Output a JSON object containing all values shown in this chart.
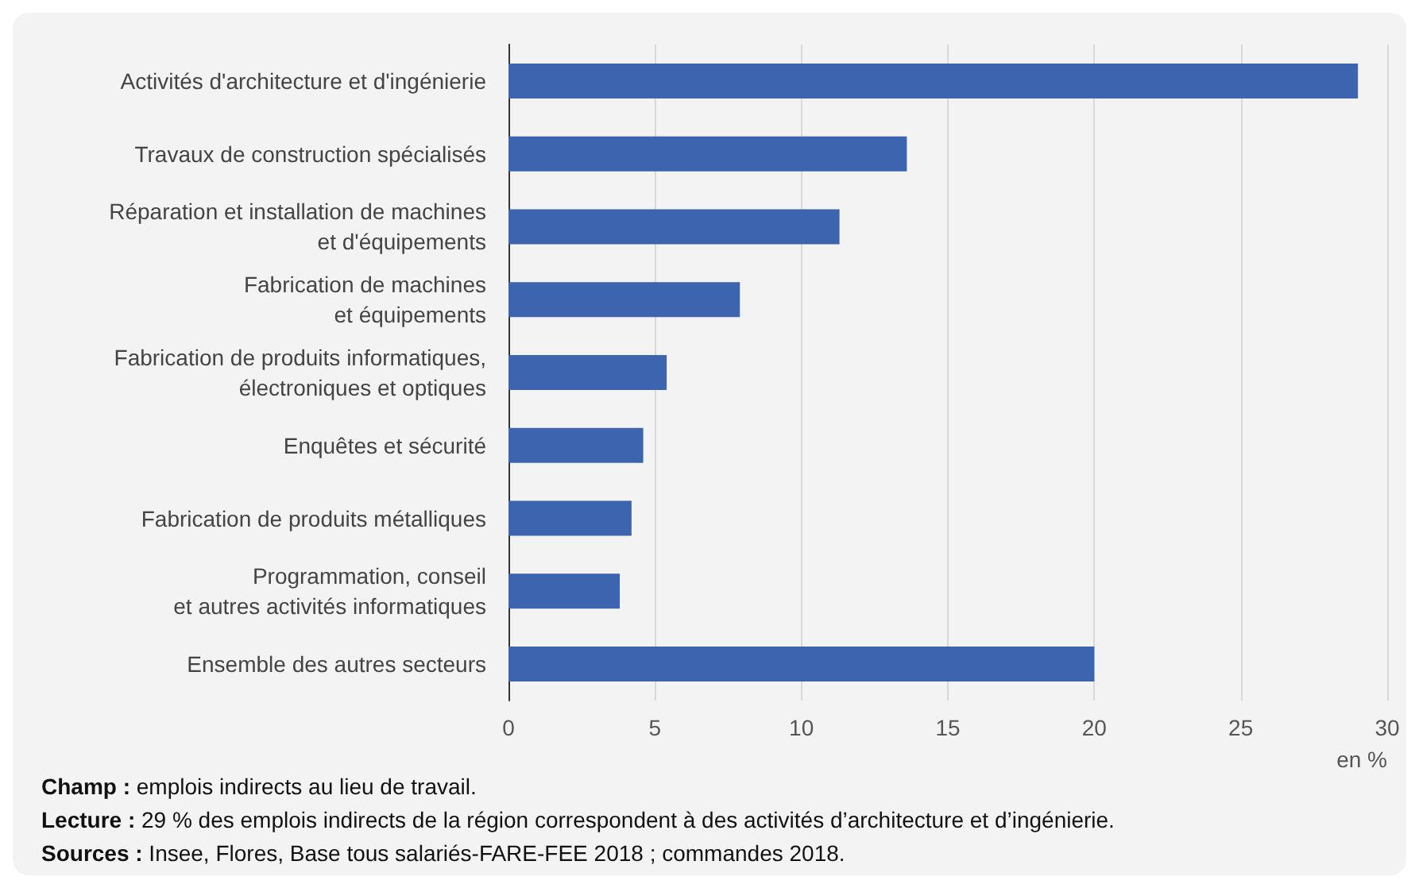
{
  "chart_data": {
    "type": "bar",
    "orientation": "horizontal",
    "xlabel": "en %",
    "categories": [
      "Activités d'architecture et d'ingénierie",
      "Travaux de construction spécialisés",
      "Réparation et installation de machines\net d'équipements",
      "Fabrication de machines\net équipements",
      "Fabrication de produits informatiques,\nélectroniques et optiques",
      "Enquêtes et sécurité",
      "Fabrication de produits métalliques",
      "Programmation, conseil\net autres activités informatiques",
      "Ensemble des autres secteurs"
    ],
    "values": [
      29.0,
      13.6,
      11.3,
      7.9,
      5.4,
      4.6,
      4.2,
      3.8,
      20.0
    ],
    "color": "#3d64ae",
    "xlim": [
      0,
      30
    ],
    "xticks": [
      0,
      5,
      10,
      15,
      20,
      25,
      30
    ],
    "grid": "x",
    "annotations": [
      "Champ : emplois indirects au lieu de travail.",
      "Lecture : 29 % des emplois indirects de la région correspondent à des activités d’architecture et d’ingénierie.",
      "Sources : Insee, Flores, Base tous salariés-FARE-FEE 2018 ; commandes 2018."
    ]
  }
}
